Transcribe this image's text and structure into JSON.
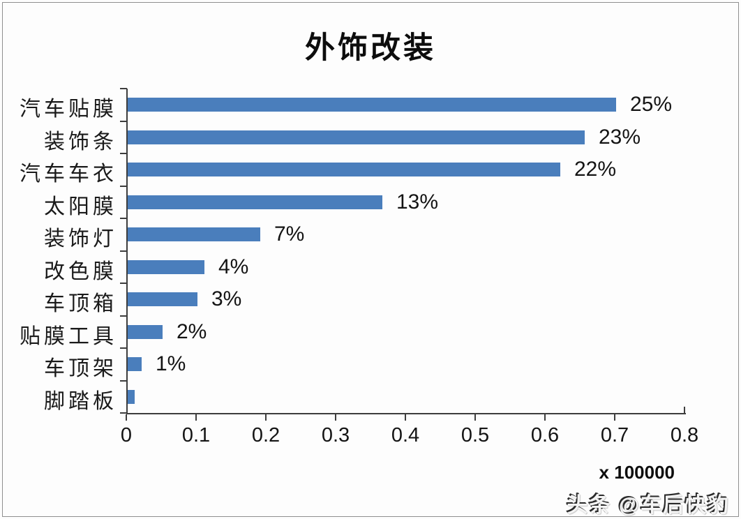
{
  "chart_data": {
    "type": "bar",
    "orientation": "horizontal",
    "title": "外饰改装",
    "categories": [
      "汽车贴膜",
      "装饰条",
      "汽车车衣",
      "太阳膜",
      "装饰灯",
      "改色膜",
      "车顶箱",
      "贴膜工具",
      "车顶架",
      "脚踏板"
    ],
    "values": [
      0.7,
      0.655,
      0.62,
      0.365,
      0.19,
      0.11,
      0.1,
      0.05,
      0.02,
      0.01
    ],
    "value_labels": [
      "25%",
      "23%",
      "22%",
      "13%",
      "7%",
      "4%",
      "3%",
      "2%",
      "1%",
      ""
    ],
    "xlabel": "",
    "ylabel": "",
    "xlim": [
      0,
      0.8
    ],
    "xtick_labels": [
      "0",
      "0.1",
      "0.2",
      "0.3",
      "0.4",
      "0.5",
      "0.6",
      "0.7",
      "0.8"
    ],
    "x_multiplier_label": "x 100000",
    "unit_note": "values are in units of 100000",
    "bar_color": "#4a7ebc",
    "axis_color": "#3d3d3d",
    "grid": false,
    "legend": false
  },
  "watermark": {
    "text": "头条 @车后快豹"
  }
}
